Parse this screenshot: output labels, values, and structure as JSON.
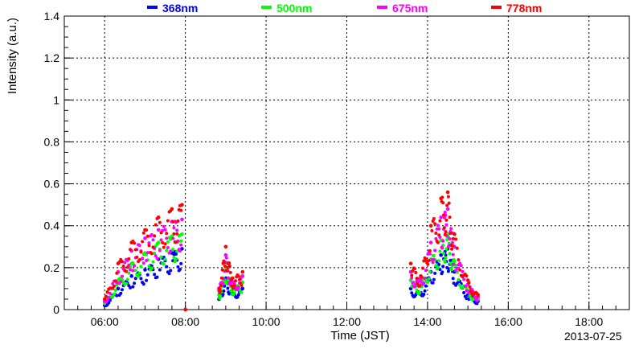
{
  "chart_data": {
    "type": "scatter",
    "title": "",
    "xlabel": "Time (JST)",
    "ylabel": "Intensity (a.u.)",
    "date": "2013-07-25",
    "xlim": [
      "05:00",
      "19:00"
    ],
    "ylim": [
      0,
      1.4
    ],
    "grid": true,
    "legend_position": "top",
    "x_ticks": [
      "06:00",
      "08:00",
      "10:00",
      "12:00",
      "14:00",
      "16:00",
      "18:00"
    ],
    "y_ticks": [
      "0",
      "0.2",
      "0.4",
      "0.6",
      "0.8",
      "1",
      "1.2",
      "1.4"
    ],
    "series": [
      {
        "name": "368nm",
        "color": "#0000ff",
        "points": [
          [
            "06:00",
            0.02
          ],
          [
            "06:20",
            0.1
          ],
          [
            "06:40",
            0.16
          ],
          [
            "07:00",
            0.19
          ],
          [
            "07:20",
            0.24
          ],
          [
            "07:40",
            0.27
          ],
          [
            "07:55",
            0.29
          ],
          [
            "08:00",
            0.0
          ],
          [
            "08:50",
            0.05
          ],
          [
            "09:00",
            0.15
          ],
          [
            "09:10",
            0.08
          ],
          [
            "09:25",
            0.1
          ],
          [
            "13:35",
            0.1
          ],
          [
            "13:50",
            0.08
          ],
          [
            "14:05",
            0.18
          ],
          [
            "14:20",
            0.26
          ],
          [
            "14:30",
            0.29
          ],
          [
            "14:40",
            0.18
          ],
          [
            "15:00",
            0.07
          ],
          [
            "15:15",
            0.04
          ]
        ]
      },
      {
        "name": "500nm",
        "color": "#00ff00",
        "points": [
          [
            "06:00",
            0.03
          ],
          [
            "06:20",
            0.14
          ],
          [
            "06:40",
            0.22
          ],
          [
            "07:00",
            0.27
          ],
          [
            "07:20",
            0.32
          ],
          [
            "07:40",
            0.35
          ],
          [
            "07:55",
            0.36
          ],
          [
            "08:00",
            0.0
          ],
          [
            "08:50",
            0.07
          ],
          [
            "09:00",
            0.2
          ],
          [
            "09:10",
            0.1
          ],
          [
            "09:25",
            0.13
          ],
          [
            "13:35",
            0.14
          ],
          [
            "13:50",
            0.11
          ],
          [
            "14:05",
            0.24
          ],
          [
            "14:20",
            0.33
          ],
          [
            "14:30",
            0.36
          ],
          [
            "14:40",
            0.23
          ],
          [
            "15:00",
            0.09
          ],
          [
            "15:15",
            0.05
          ]
        ]
      },
      {
        "name": "675nm",
        "color": "#ff00ff",
        "points": [
          [
            "06:00",
            0.04
          ],
          [
            "06:20",
            0.18
          ],
          [
            "06:40",
            0.28
          ],
          [
            "07:00",
            0.34
          ],
          [
            "07:20",
            0.38
          ],
          [
            "07:40",
            0.42
          ],
          [
            "07:55",
            0.43
          ],
          [
            "08:00",
            0.0
          ],
          [
            "08:50",
            0.09
          ],
          [
            "09:00",
            0.26
          ],
          [
            "09:10",
            0.13
          ],
          [
            "09:25",
            0.16
          ],
          [
            "13:35",
            0.18
          ],
          [
            "13:50",
            0.14
          ],
          [
            "14:05",
            0.32
          ],
          [
            "14:20",
            0.44
          ],
          [
            "14:30",
            0.48
          ],
          [
            "14:40",
            0.3
          ],
          [
            "15:00",
            0.12
          ],
          [
            "15:15",
            0.06
          ]
        ]
      },
      {
        "name": "778nm",
        "color": "#ff0000",
        "points": [
          [
            "06:00",
            0.05
          ],
          [
            "06:20",
            0.22
          ],
          [
            "06:40",
            0.32
          ],
          [
            "07:00",
            0.38
          ],
          [
            "07:20",
            0.44
          ],
          [
            "07:40",
            0.48
          ],
          [
            "07:55",
            0.5
          ],
          [
            "08:00",
            0.0
          ],
          [
            "08:50",
            0.1
          ],
          [
            "09:00",
            0.3
          ],
          [
            "09:10",
            0.15
          ],
          [
            "09:25",
            0.18
          ],
          [
            "13:35",
            0.22
          ],
          [
            "13:50",
            0.16
          ],
          [
            "14:05",
            0.4
          ],
          [
            "14:20",
            0.53
          ],
          [
            "14:30",
            0.56
          ],
          [
            "14:40",
            0.36
          ],
          [
            "15:00",
            0.14
          ],
          [
            "15:15",
            0.07
          ]
        ]
      }
    ]
  }
}
